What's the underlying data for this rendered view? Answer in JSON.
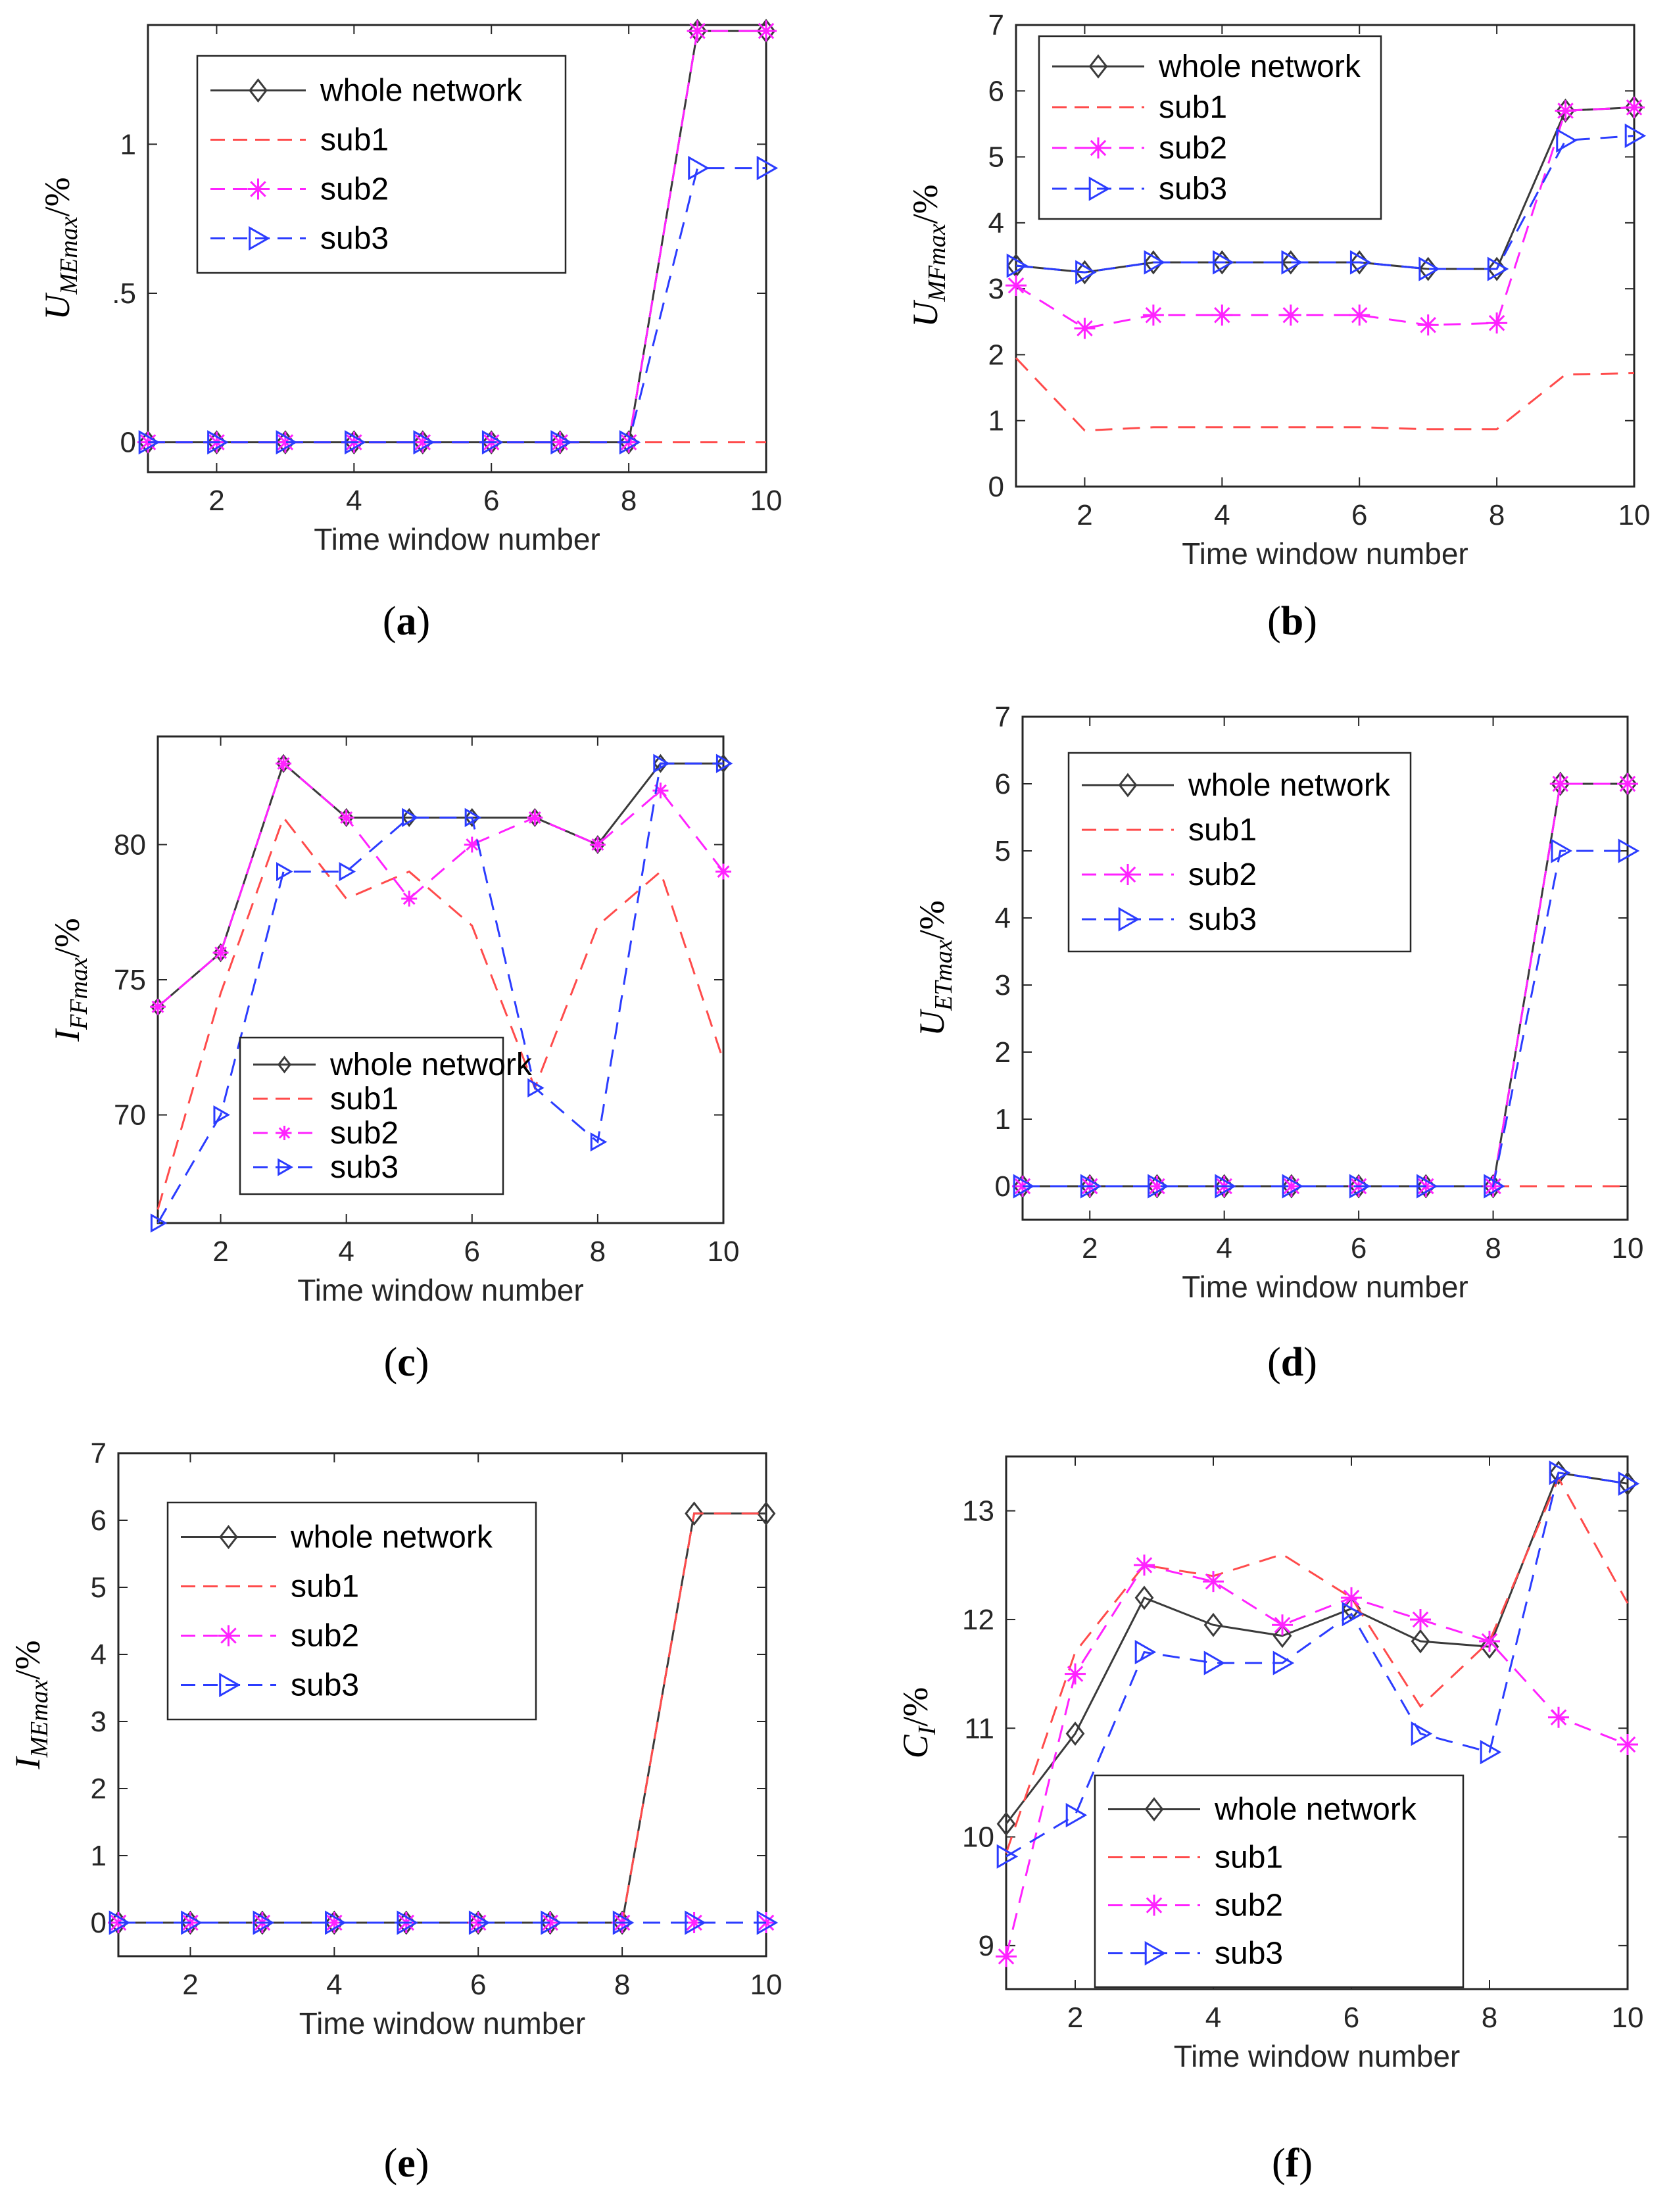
{
  "chart_data": [
    {
      "id": "a",
      "type": "line",
      "caption_letter": "a",
      "ylabel_main": "U",
      "ylabel_sub": "MEmax",
      "ylabel_unit": "/%",
      "xlabel": "Time window number",
      "xticks": [
        2,
        4,
        6,
        8,
        10
      ],
      "xlim": [
        1,
        10
      ],
      "ylim": [
        -0.1,
        1.4
      ],
      "yticks": [
        0,
        0.5,
        1
      ],
      "ytick_labels": [
        "0",
        ".5",
        "1"
      ],
      "legend_position": "top-left",
      "x": [
        1,
        2,
        3,
        4,
        5,
        6,
        7,
        8,
        9,
        10
      ],
      "series": [
        {
          "name": "whole network",
          "values": [
            0,
            0,
            0,
            0,
            0,
            0,
            0,
            0,
            1.38,
            1.38
          ]
        },
        {
          "name": "sub1",
          "values": [
            0,
            0,
            0,
            0,
            0,
            0,
            0,
            0,
            0,
            0
          ]
        },
        {
          "name": "sub2",
          "values": [
            0,
            0,
            0,
            0,
            0,
            0,
            0,
            0,
            1.38,
            1.38
          ]
        },
        {
          "name": "sub3",
          "values": [
            0,
            0,
            0,
            0,
            0,
            0,
            0,
            0,
            0.92,
            0.92
          ]
        }
      ]
    },
    {
      "id": "b",
      "type": "line",
      "caption_letter": "b",
      "ylabel_main": "U",
      "ylabel_sub": "MFmax",
      "ylabel_unit": "/%",
      "xlabel": "Time window number",
      "xticks": [
        2,
        4,
        6,
        8,
        10
      ],
      "xlim": [
        1,
        10
      ],
      "ylim": [
        0,
        7
      ],
      "yticks": [
        0,
        1,
        2,
        3,
        4,
        5,
        6,
        7
      ],
      "ytick_labels": [
        "0",
        "1",
        "2",
        "3",
        "4",
        "5",
        "6",
        "7"
      ],
      "legend_position": "top-left",
      "x": [
        1,
        2,
        3,
        4,
        5,
        6,
        7,
        8,
        9,
        10
      ],
      "series": [
        {
          "name": "whole network",
          "values": [
            3.35,
            3.25,
            3.4,
            3.4,
            3.4,
            3.4,
            3.3,
            3.3,
            5.7,
            5.75
          ]
        },
        {
          "name": "sub1",
          "values": [
            1.95,
            0.85,
            0.9,
            0.9,
            0.9,
            0.9,
            0.87,
            0.87,
            1.7,
            1.72
          ]
        },
        {
          "name": "sub2",
          "values": [
            3.05,
            2.4,
            2.6,
            2.6,
            2.6,
            2.6,
            2.45,
            2.48,
            5.7,
            5.75
          ]
        },
        {
          "name": "sub3",
          "values": [
            3.35,
            3.25,
            3.4,
            3.4,
            3.4,
            3.4,
            3.3,
            3.3,
            5.25,
            5.32
          ]
        }
      ]
    },
    {
      "id": "c",
      "type": "line",
      "caption_letter": "c",
      "ylabel_main": "I",
      "ylabel_sub": "FFmax",
      "ylabel_unit": "/%",
      "xlabel": "Time window number",
      "xticks": [
        2,
        4,
        6,
        8,
        10
      ],
      "xlim": [
        1,
        10
      ],
      "ylim": [
        66,
        84
      ],
      "yticks": [
        70,
        75,
        80
      ],
      "ytick_labels": [
        "70",
        "75",
        "80"
      ],
      "legend_position": "bottom-center",
      "x": [
        1,
        2,
        3,
        4,
        5,
        6,
        7,
        8,
        9,
        10
      ],
      "series": [
        {
          "name": "whole network",
          "values": [
            74,
            76,
            83,
            81,
            81,
            81,
            81,
            80,
            83,
            83
          ]
        },
        {
          "name": "sub1",
          "values": [
            66.5,
            74.5,
            81,
            78,
            79,
            77,
            71,
            77,
            79,
            72
          ]
        },
        {
          "name": "sub2",
          "values": [
            74,
            76,
            83,
            81,
            78,
            80,
            81,
            80,
            82,
            79
          ]
        },
        {
          "name": "sub3",
          "values": [
            66,
            70,
            79,
            79,
            81,
            81,
            71,
            69,
            83,
            83
          ]
        }
      ]
    },
    {
      "id": "d",
      "type": "line",
      "caption_letter": "d",
      "ylabel_main": "U",
      "ylabel_sub": "ETmax",
      "ylabel_unit": "/%",
      "xlabel": "Time window number",
      "xticks": [
        2,
        4,
        6,
        8,
        10
      ],
      "xlim": [
        1,
        10
      ],
      "ylim": [
        -0.5,
        7
      ],
      "yticks": [
        0,
        1,
        2,
        3,
        4,
        5,
        6,
        7
      ],
      "ytick_labels": [
        "0",
        "1",
        "2",
        "3",
        "4",
        "5",
        "6",
        "7"
      ],
      "legend_position": "top-left",
      "x": [
        1,
        2,
        3,
        4,
        5,
        6,
        7,
        8,
        9,
        10
      ],
      "series": [
        {
          "name": "whole network",
          "values": [
            0,
            0,
            0,
            0,
            0,
            0,
            0,
            0,
            6,
            6
          ]
        },
        {
          "name": "sub1",
          "values": [
            0,
            0,
            0,
            0,
            0,
            0,
            0,
            0,
            0,
            0
          ]
        },
        {
          "name": "sub2",
          "values": [
            0,
            0,
            0,
            0,
            0,
            0,
            0,
            0,
            6,
            6
          ]
        },
        {
          "name": "sub3",
          "values": [
            0,
            0,
            0,
            0,
            0,
            0,
            0,
            0,
            5,
            5
          ]
        }
      ]
    },
    {
      "id": "e",
      "type": "line",
      "caption_letter": "e",
      "ylabel_main": "I",
      "ylabel_sub": "MEmax",
      "ylabel_unit": "/%",
      "xlabel": "Time window number",
      "xticks": [
        2,
        4,
        6,
        8,
        10
      ],
      "xlim": [
        1,
        10
      ],
      "ylim": [
        -0.5,
        7
      ],
      "yticks": [
        0,
        1,
        2,
        3,
        4,
        5,
        6,
        7
      ],
      "ytick_labels": [
        "0",
        "1",
        "2",
        "3",
        "4",
        "5",
        "6",
        "7"
      ],
      "legend_position": "top-left",
      "x": [
        1,
        2,
        3,
        4,
        5,
        6,
        7,
        8,
        9,
        10
      ],
      "series": [
        {
          "name": "whole network",
          "values": [
            0,
            0,
            0,
            0,
            0,
            0,
            0,
            0,
            6.1,
            6.1
          ]
        },
        {
          "name": "sub1",
          "values": [
            0,
            0,
            0,
            0,
            0,
            0,
            0,
            0,
            6.1,
            6.1
          ]
        },
        {
          "name": "sub2",
          "values": [
            0,
            0,
            0,
            0,
            0,
            0,
            0,
            0,
            0,
            0
          ]
        },
        {
          "name": "sub3",
          "values": [
            0,
            0,
            0,
            0,
            0,
            0,
            0,
            0,
            0,
            0
          ]
        }
      ]
    },
    {
      "id": "f",
      "type": "line",
      "caption_letter": "f",
      "ylabel_main": "C",
      "ylabel_sub": "I",
      "ylabel_unit": "/%",
      "xlabel": "Time window number",
      "xticks": [
        2,
        4,
        6,
        8,
        10
      ],
      "xlim": [
        1,
        10
      ],
      "ylim": [
        8.6,
        13.5
      ],
      "yticks": [
        9,
        10,
        11,
        12,
        13
      ],
      "ytick_labels": [
        "9",
        "10",
        "11",
        "12",
        "13"
      ],
      "legend_position": "bottom-center",
      "x": [
        1,
        2,
        3,
        4,
        5,
        6,
        7,
        8,
        9,
        10
      ],
      "series": [
        {
          "name": "whole network",
          "values": [
            10.12,
            10.95,
            12.2,
            11.95,
            11.85,
            12.1,
            11.8,
            11.75,
            13.35,
            13.25
          ]
        },
        {
          "name": "sub1",
          "values": [
            9.85,
            11.7,
            12.5,
            12.4,
            12.6,
            12.2,
            11.2,
            11.8,
            13.3,
            12.15
          ]
        },
        {
          "name": "sub2",
          "values": [
            8.9,
            11.5,
            12.5,
            12.35,
            11.95,
            12.2,
            12.0,
            11.8,
            11.1,
            10.85
          ]
        },
        {
          "name": "sub3",
          "values": [
            9.82,
            10.2,
            11.7,
            11.6,
            11.6,
            12.05,
            10.95,
            10.78,
            13.35,
            13.25
          ]
        }
      ]
    }
  ],
  "series_colors": {
    "whole network": "#3a3a3a",
    "sub1": "#ff4b4b",
    "sub2": "#ff22ff",
    "sub3": "#2b3cff"
  }
}
